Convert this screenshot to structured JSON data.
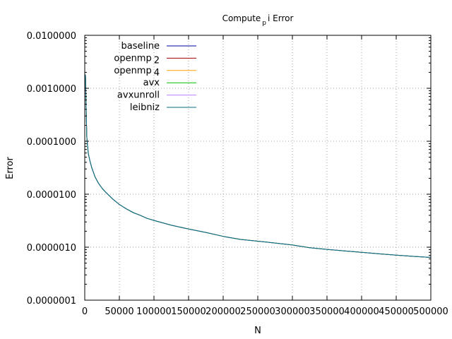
{
  "chart_data": {
    "type": "line",
    "title": {
      "prefix": "Compute",
      "subscript": "p",
      "suffix": "i Error"
    },
    "xlabel": "N",
    "ylabel": "Error",
    "xlim": [
      0,
      500000
    ],
    "ylim": [
      1e-07,
      0.01
    ],
    "yscale": "log",
    "grid": true,
    "legend_position": "top-left",
    "x_ticks": [
      0,
      50000,
      100000,
      150000,
      200000,
      250000,
      300000,
      350000,
      400000,
      450000,
      500000
    ],
    "x_tick_labels": [
      "0",
      "50000",
      "100000",
      "150000",
      "200000",
      "250000",
      "300000",
      "350000",
      "400000",
      "450000",
      "500000"
    ],
    "y_ticks": [
      1e-07,
      1e-06,
      1e-05,
      0.0001,
      0.001,
      0.01
    ],
    "y_tick_labels": [
      "0.0000001",
      "0.0000010",
      "0.0000100",
      "0.0001000",
      "0.0010000",
      "0.0100000"
    ],
    "series": [
      {
        "name": "baseline",
        "label_base": "baseline",
        "label_sub": "",
        "color": "#0000a0"
      },
      {
        "name": "openmp 2",
        "label_base": "openmp",
        "label_sub": "2",
        "color": "#a00000"
      },
      {
        "name": "openmp 4",
        "label_base": "openmp",
        "label_sub": "4",
        "color": "#ffa000"
      },
      {
        "name": "avx",
        "label_base": "avx",
        "label_sub": "",
        "color": "#00c000"
      },
      {
        "name": "avxunroll",
        "label_base": "avxunroll",
        "label_sub": "",
        "color": "#c080ff"
      },
      {
        "name": "leibniz",
        "label_base": "leibniz",
        "label_sub": "",
        "color": "#007080"
      }
    ],
    "x": [
      1000,
      2000,
      3000,
      5000,
      7000,
      10000,
      15000,
      20000,
      25000,
      30000,
      40000,
      50000,
      60000,
      70000,
      80000,
      90000,
      100000,
      125000,
      150000,
      175000,
      200000,
      225000,
      250000,
      275000,
      300000,
      325000,
      350000,
      375000,
      400000,
      425000,
      450000,
      475000,
      500000
    ],
    "y": [
      0.0018,
      0.0004,
      0.00012,
      6e-05,
      4.5e-05,
      3.2e-05,
      2.1e-05,
      1.6e-05,
      1.3e-05,
      1.1e-05,
      8.2e-06,
      6.4e-06,
      5.3e-06,
      4.5e-06,
      4e-06,
      3.5e-06,
      3.2e-06,
      2.6e-06,
      2.2e-06,
      1.9e-06,
      1.6e-06,
      1.4e-06,
      1.3e-06,
      1.2e-06,
      1.1e-06,
      9.8e-07,
      9.1e-07,
      8.5e-07,
      8e-07,
      7.5e-07,
      7.1e-07,
      6.7e-07,
      6.4e-07
    ]
  }
}
